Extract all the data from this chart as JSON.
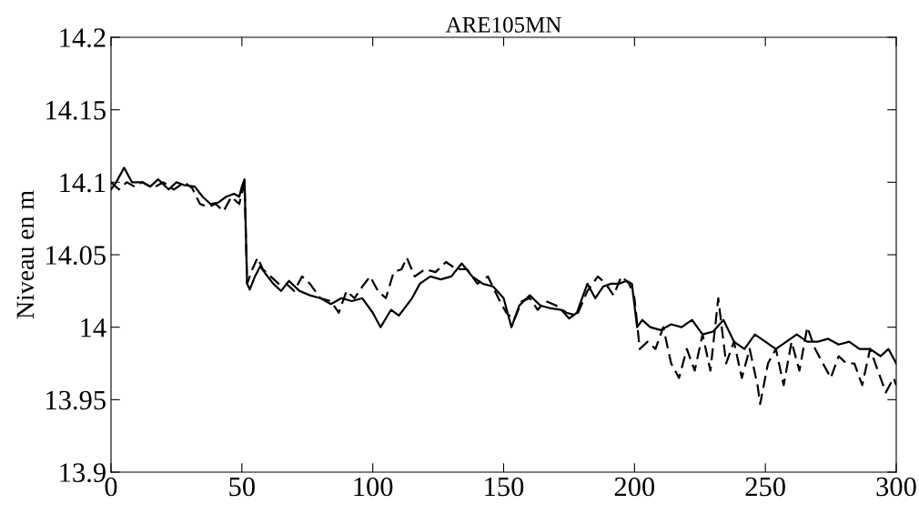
{
  "chart_data": {
    "type": "line",
    "title": "ARE105MN",
    "ylabel": "Niveau en m",
    "xlim": [
      0,
      300
    ],
    "xticks": [
      0,
      50,
      100,
      150,
      200,
      250,
      300
    ],
    "ylim": [
      13.9,
      14.2
    ],
    "yticks": [
      13.9,
      13.95,
      14,
      14.05,
      14.1,
      14.15,
      14.2
    ],
    "grid": false,
    "marker": "none",
    "series": [
      {
        "color": "#000000",
        "line_style": "solid",
        "x": [
          0,
          2,
          5,
          8,
          12,
          15,
          18,
          22,
          25,
          28,
          32,
          35,
          38,
          41,
          44,
          47,
          49,
          50,
          51,
          52,
          53,
          55,
          57,
          59,
          62,
          65,
          68,
          72,
          76,
          80,
          84,
          88,
          92,
          96,
          100,
          103,
          107,
          110,
          115,
          118,
          122,
          126,
          130,
          134,
          138,
          142,
          146,
          150,
          153,
          156,
          160,
          164,
          168,
          172,
          175,
          178,
          182,
          185,
          188,
          191,
          194,
          197,
          199,
          201,
          203,
          206,
          210,
          214,
          218,
          222,
          226,
          230,
          234,
          238,
          242,
          246,
          250,
          254,
          258,
          262,
          266,
          270,
          274,
          278,
          282,
          286,
          290,
          294,
          297,
          300
        ],
        "values": [
          14.095,
          14.1,
          14.11,
          14.1,
          14.1,
          14.097,
          14.102,
          14.095,
          14.1,
          14.098,
          14.097,
          14.09,
          14.085,
          14.086,
          14.09,
          14.092,
          14.09,
          14.097,
          14.102,
          14.03,
          14.026,
          14.035,
          14.042,
          14.037,
          14.03,
          14.025,
          14.032,
          14.025,
          14.022,
          14.02,
          14.016,
          14.02,
          14.018,
          14.02,
          14.01,
          14.0,
          14.012,
          14.008,
          14.02,
          14.03,
          14.035,
          14.033,
          14.035,
          14.044,
          14.035,
          14.03,
          14.028,
          14.02,
          14.0,
          14.015,
          14.022,
          14.015,
          14.013,
          14.012,
          14.006,
          14.01,
          14.03,
          14.02,
          14.028,
          14.03,
          14.03,
          14.032,
          14.03,
          14.0,
          14.005,
          14.0,
          13.998,
          14.002,
          14.0,
          14.005,
          13.995,
          13.997,
          14.005,
          13.99,
          13.985,
          13.995,
          13.99,
          13.985,
          13.99,
          13.995,
          13.99,
          13.99,
          13.992,
          13.988,
          13.99,
          13.985,
          13.985,
          13.98,
          13.985,
          13.975
        ]
      },
      {
        "color": "#000000",
        "line_style": "dashed",
        "x": [
          0,
          3,
          6,
          9,
          12,
          16,
          20,
          24,
          28,
          31,
          34,
          37,
          40,
          43,
          46,
          49,
          51,
          52,
          54,
          56,
          58,
          61,
          64,
          67,
          70,
          73,
          76,
          80,
          84,
          87,
          90,
          93,
          96,
          99,
          102,
          105,
          108,
          111,
          113,
          116,
          120,
          124,
          128,
          132,
          136,
          140,
          144,
          148,
          151,
          154,
          157,
          160,
          163,
          166,
          170,
          174,
          178,
          182,
          186,
          189,
          192,
          195,
          198,
          200,
          202,
          205,
          208,
          211,
          214,
          217,
          220,
          223,
          226,
          229,
          232,
          235,
          238,
          241,
          244,
          247,
          248,
          251,
          254,
          257,
          260,
          263,
          266,
          269,
          272,
          275,
          278,
          281,
          284,
          287,
          290,
          293,
          296,
          299,
          300
        ],
        "values": [
          14.1,
          14.095,
          14.1,
          14.097,
          14.1,
          14.096,
          14.1,
          14.095,
          14.1,
          14.096,
          14.085,
          14.083,
          14.085,
          14.08,
          14.09,
          14.085,
          14.1,
          14.03,
          14.04,
          14.048,
          14.04,
          14.035,
          14.03,
          14.03,
          14.025,
          14.035,
          14.03,
          14.02,
          14.018,
          14.01,
          14.025,
          14.02,
          14.028,
          14.035,
          14.025,
          14.02,
          14.038,
          14.04,
          14.048,
          14.035,
          14.04,
          14.038,
          14.045,
          14.04,
          14.04,
          14.03,
          14.035,
          14.02,
          14.01,
          14.005,
          14.018,
          14.02,
          14.012,
          14.018,
          14.015,
          14.01,
          14.008,
          14.025,
          14.035,
          14.03,
          14.022,
          14.035,
          14.03,
          14.02,
          13.985,
          13.99,
          13.985,
          14.0,
          13.975,
          13.965,
          13.985,
          13.97,
          13.995,
          13.97,
          14.02,
          13.975,
          13.99,
          13.965,
          13.985,
          13.96,
          13.947,
          13.975,
          13.985,
          13.96,
          13.99,
          13.97,
          14.0,
          13.985,
          13.975,
          13.965,
          13.98,
          13.975,
          13.975,
          13.96,
          13.985,
          13.97,
          13.955,
          13.965,
          13.96
        ]
      }
    ]
  }
}
